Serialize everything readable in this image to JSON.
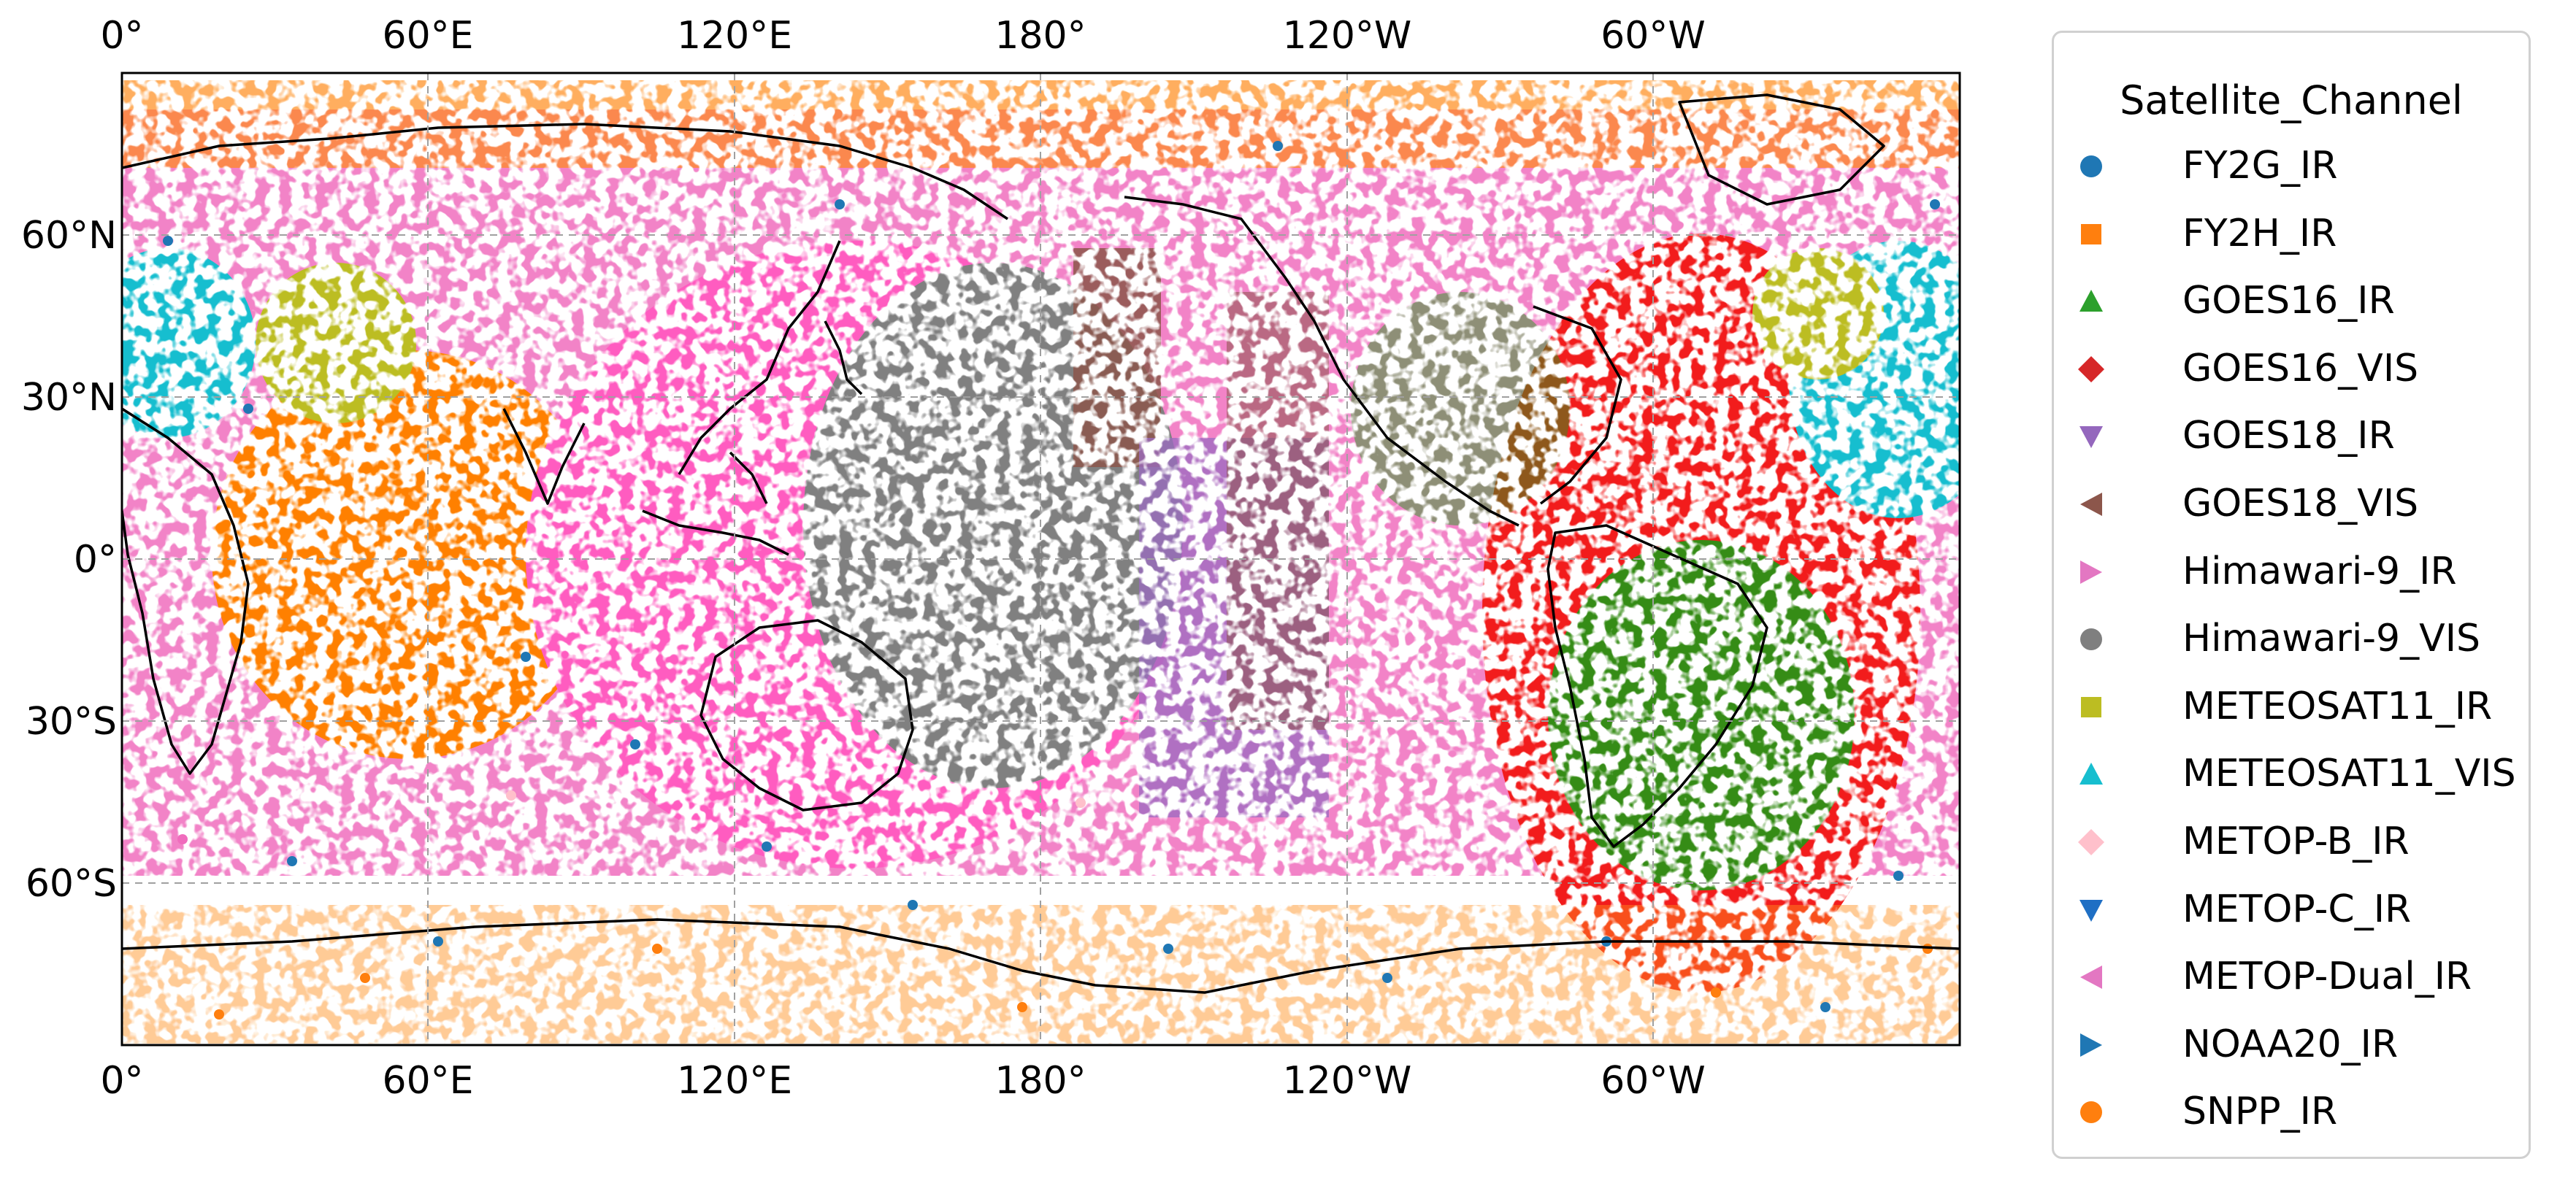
{
  "map": {
    "projection": "PlateCarree",
    "central_longitude": 180,
    "gridlines": true,
    "extent": {
      "lon": [
        0,
        360
      ],
      "lat": [
        -90,
        90
      ]
    },
    "top_ticks": [
      "0°",
      "60°E",
      "120°E",
      "180°",
      "120°W",
      "60°W"
    ],
    "bottom_ticks": [
      "0°",
      "60°E",
      "120°E",
      "180°",
      "120°W",
      "60°W"
    ],
    "lat_ticks": [
      "60°N",
      "30°N",
      "0°",
      "30°S",
      "60°S"
    ]
  },
  "legend": {
    "title": "Satellite_Channel",
    "placement": "right",
    "items": [
      {
        "label": "FY2G_IR",
        "marker": "circle",
        "color": "#1f77b4"
      },
      {
        "label": "FY2H_IR",
        "marker": "square",
        "color": "#ff7f0e"
      },
      {
        "label": "GOES16_IR",
        "marker": "triangle-up",
        "color": "#2ca02c"
      },
      {
        "label": "GOES16_VIS",
        "marker": "diamond",
        "color": "#d62728"
      },
      {
        "label": "GOES18_IR",
        "marker": "triangle-down",
        "color": "#9467bd"
      },
      {
        "label": "GOES18_VIS",
        "marker": "triangle-left",
        "color": "#8c564b"
      },
      {
        "label": "Himawari-9_IR",
        "marker": "triangle-right",
        "color": "#e377c2"
      },
      {
        "label": "Himawari-9_VIS",
        "marker": "circle",
        "color": "#7f7f7f"
      },
      {
        "label": "METEOSAT11_IR",
        "marker": "square",
        "color": "#bcbd22"
      },
      {
        "label": "METEOSAT11_VIS",
        "marker": "triangle-up",
        "color": "#17becf"
      },
      {
        "label": "METOP-B_IR",
        "marker": "diamond",
        "color": "#ffc0cb"
      },
      {
        "label": "METOP-C_IR",
        "marker": "triangle-down",
        "color": "#1f6fc4"
      },
      {
        "label": "METOP-Dual_IR",
        "marker": "triangle-left",
        "color": "#e377c2"
      },
      {
        "label": "NOAA20_IR",
        "marker": "triangle-right",
        "color": "#1f77b4"
      },
      {
        "label": "SNPP_IR",
        "marker": "circle",
        "color": "#ff7f0e"
      }
    ]
  }
}
